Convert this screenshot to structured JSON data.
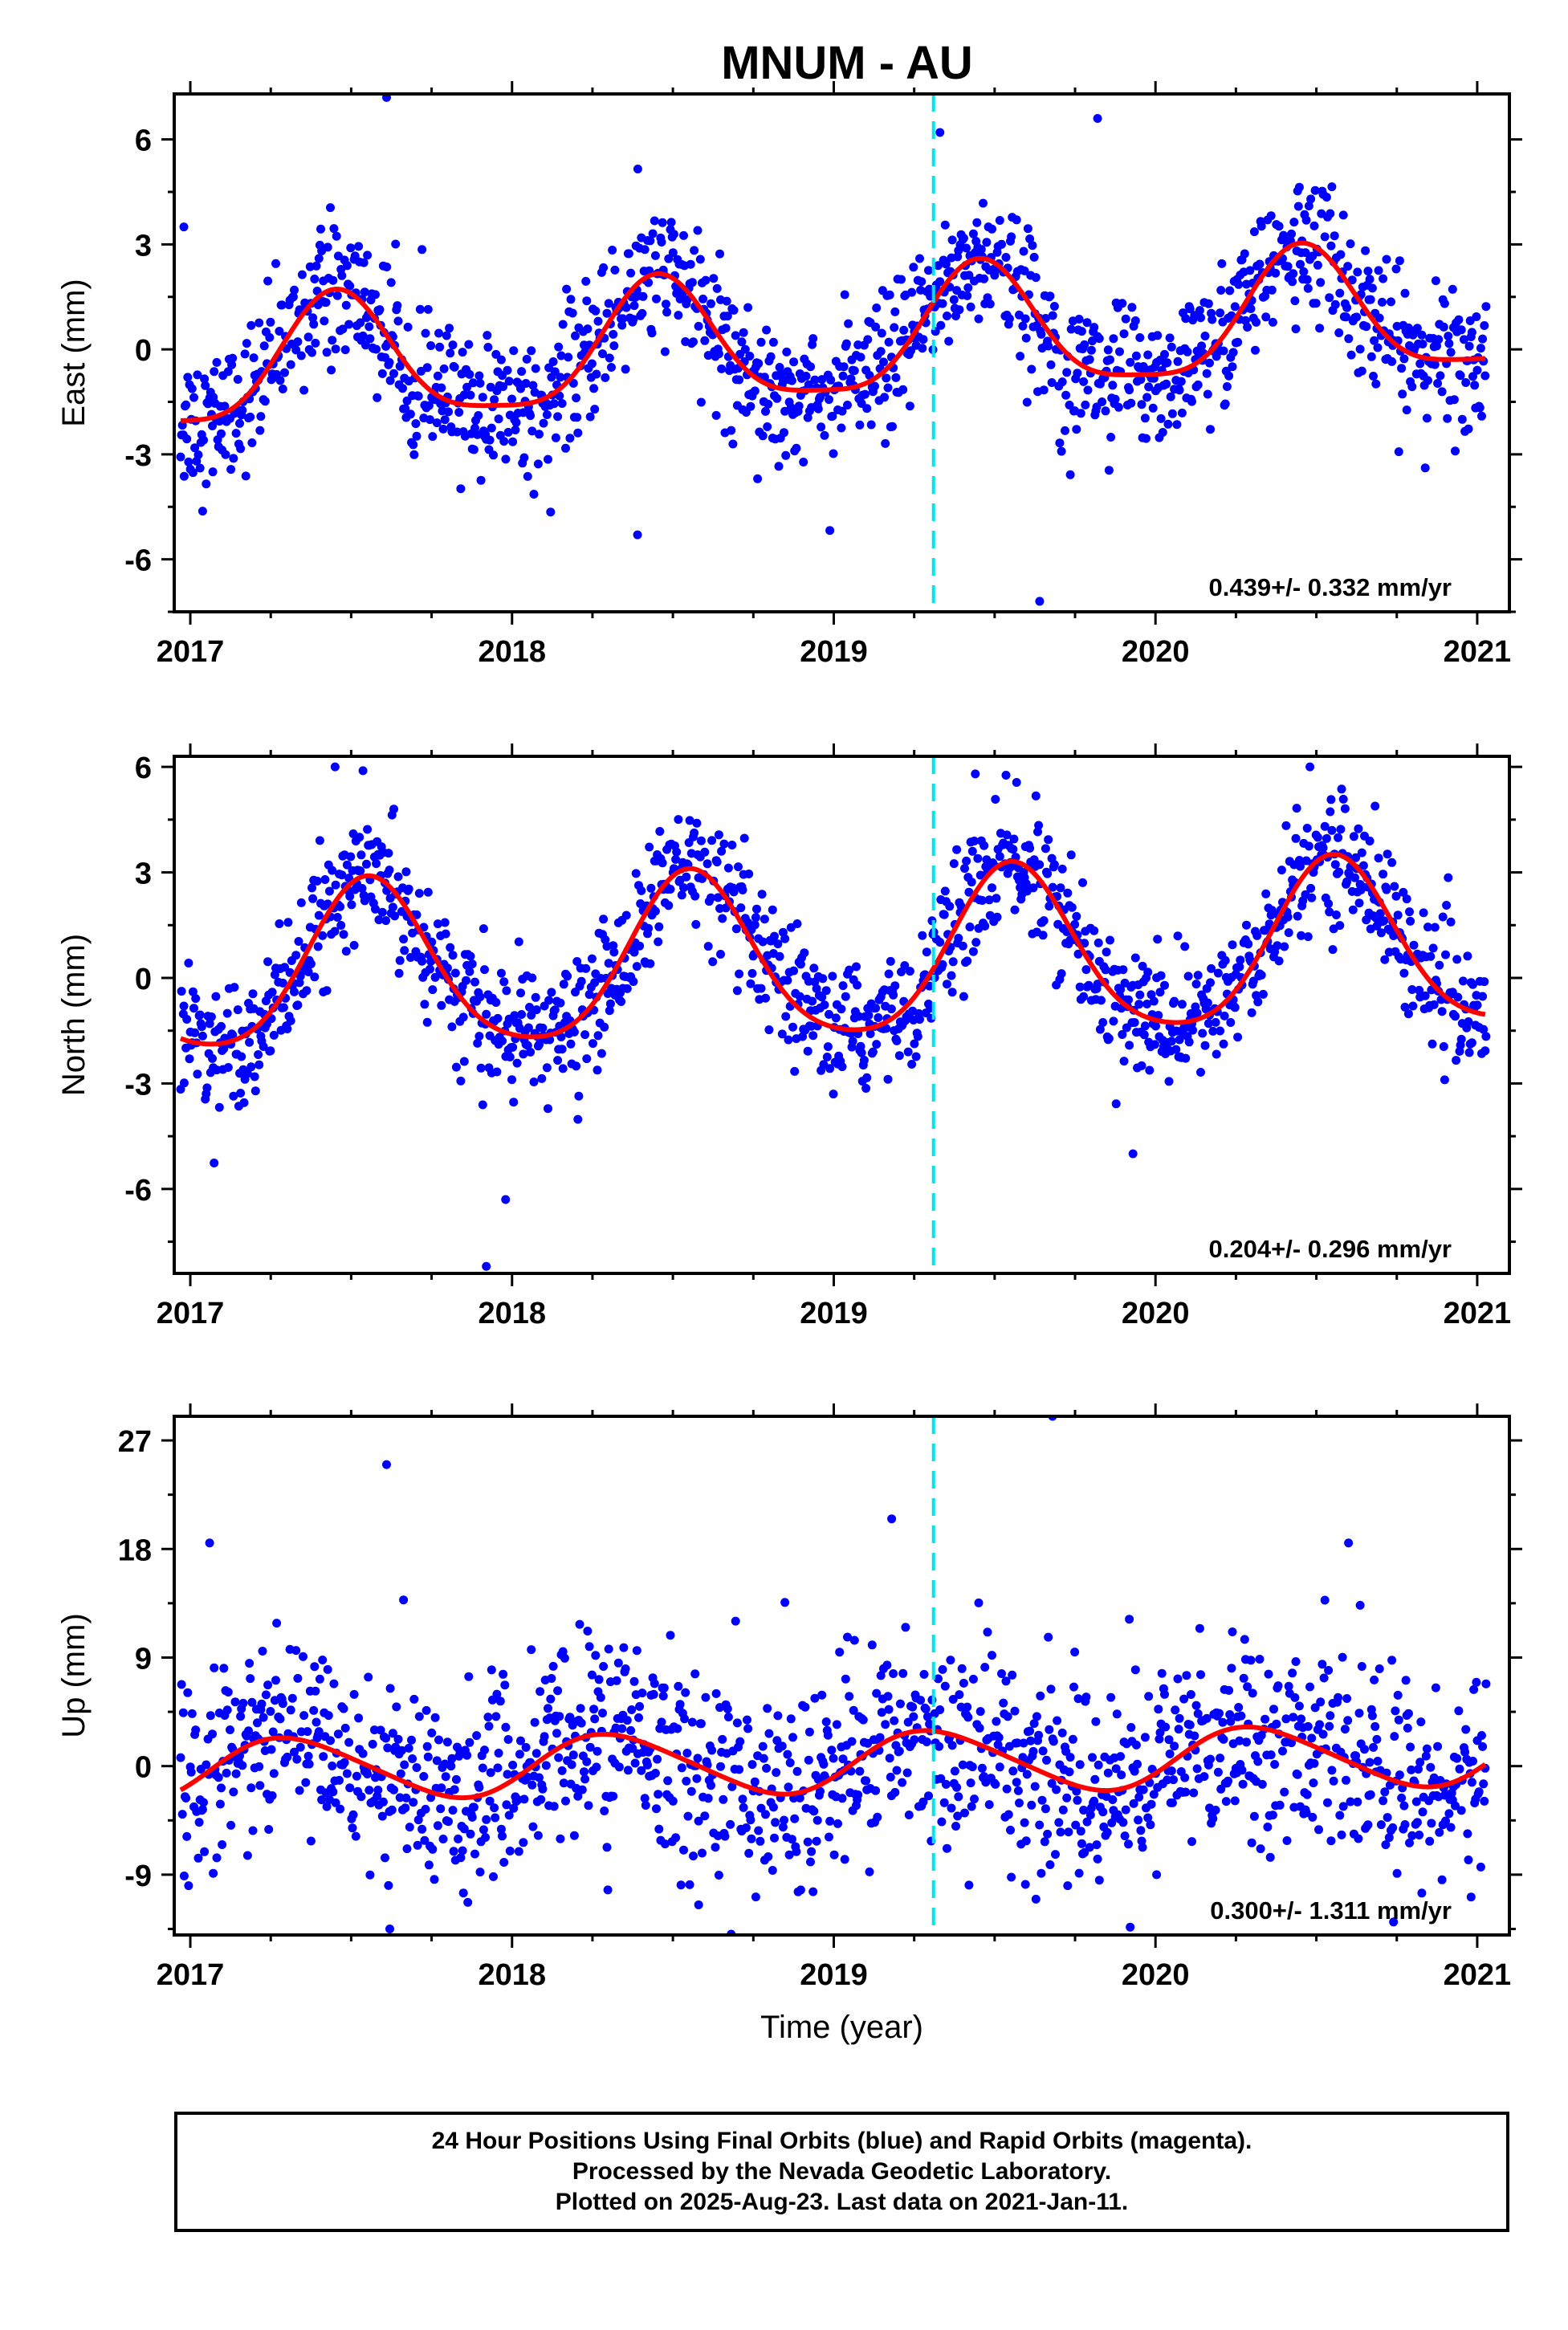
{
  "title": "MNUM - AU",
  "colors": {
    "points": "#0000ff",
    "fit": "#ff0000",
    "event_line": "#00e5ee",
    "frame": "#000000"
  },
  "chart_data": [
    {
      "type": "scatter",
      "ylabel": "East (mm)",
      "xlabel": "",
      "xlim": [
        2016.95,
        2021.1
      ],
      "ylim": [
        -7.5,
        7.3
      ],
      "xticks": [
        "2017",
        "2018",
        "2019",
        "2020",
        "2021"
      ],
      "yticks": [
        "6",
        "3",
        "0",
        "-3",
        "-6"
      ],
      "rate_text": "0.439+/- 0.332 mm/yr",
      "event_line_x": 2019.31,
      "seasonal_fit": {
        "trend_slope": 0.439,
        "offset": 0.2,
        "annual_cos": -1.7,
        "annual_sin": 0.5,
        "semiannual_cos": 0.35,
        "semiannual_sin": -0.25,
        "noise_sd": 1.0
      },
      "outliers": [
        [
          2017.61,
          7.2
        ],
        [
          2019.33,
          6.2
        ],
        [
          2019.64,
          -7.2
        ],
        [
          2019.82,
          6.6
        ],
        [
          2018.39,
          -5.3
        ],
        [
          2016.98,
          3.5
        ],
        [
          2017.07,
          -3.5
        ]
      ],
      "gridlines": false
    },
    {
      "type": "scatter",
      "ylabel": "North (mm)",
      "xlabel": "",
      "xlim": [
        2016.95,
        2021.1
      ],
      "ylim": [
        -8.4,
        6.3
      ],
      "xticks": [
        "2017",
        "2018",
        "2019",
        "2020",
        "2021"
      ],
      "yticks": [
        "6",
        "3",
        "0",
        "-3",
        "-6"
      ],
      "rate_text": "0.204+/- 0.296 mm/yr",
      "event_line_x": 2019.31,
      "seasonal_fit": {
        "trend_slope": 0.204,
        "offset": 0.5,
        "annual_cos": -2.2,
        "annual_sin": -0.8,
        "semiannual_cos": 0.3,
        "semiannual_sin": 0.2,
        "noise_sd": 0.9
      },
      "outliers": [
        [
          2017.92,
          -8.2
        ],
        [
          2017.98,
          -6.3
        ],
        [
          2017.45,
          6.0
        ],
        [
          2020.48,
          6.0
        ],
        [
          2019.44,
          5.8
        ],
        [
          2019.93,
          -5.0
        ],
        [
          2016.98,
          -0.8
        ]
      ],
      "gridlines": false
    },
    {
      "type": "scatter",
      "ylabel": "Up (mm)",
      "xlabel": "Time (year)",
      "xlim": [
        2016.95,
        2021.1
      ],
      "ylim": [
        -14,
        29
      ],
      "xticks": [
        "2017",
        "2018",
        "2019",
        "2020",
        "2021"
      ],
      "yticks": [
        "27",
        "18",
        "9",
        "0",
        "-9"
      ],
      "rate_text": "0.300+/- 1.311 mm/yr",
      "event_line_x": 2019.31,
      "seasonal_fit": {
        "trend_slope": 0.3,
        "offset": 0.3,
        "annual_cos": -1.0,
        "annual_sin": 2.3,
        "semiannual_cos": -0.2,
        "semiannual_sin": 0.2,
        "noise_sd": 4.2
      },
      "outliers": [
        [
          2017.61,
          25.0
        ],
        [
          2019.68,
          29.0
        ],
        [
          2019.18,
          20.5
        ],
        [
          2017.62,
          -13.5
        ],
        [
          2018.58,
          -11.5
        ],
        [
          2017.06,
          18.5
        ],
        [
          2020.6,
          18.5
        ]
      ],
      "gridlines": false
    }
  ],
  "footer": {
    "line1": "24 Hour Positions Using Final Orbits (blue) and Rapid Orbits (magenta).",
    "line2": "Processed by the Nevada Geodetic Laboratory.",
    "line3": "Plotted on 2025-Aug-23. Last data on 2021-Jan-11."
  }
}
